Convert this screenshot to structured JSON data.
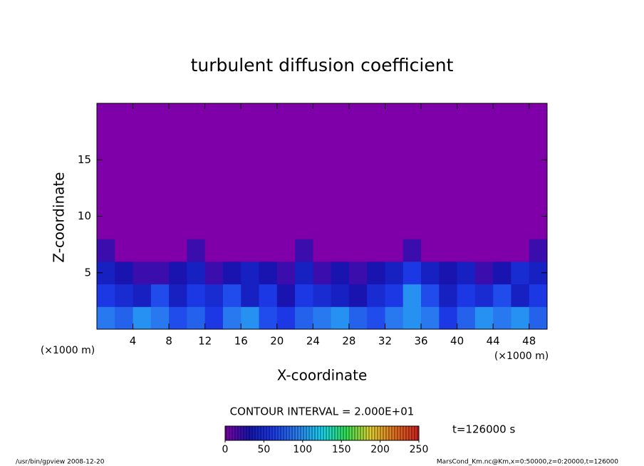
{
  "chart_data": {
    "type": "contour",
    "title": "turbulent diffusion coefficient",
    "xlabel": "X-coordinate",
    "ylabel": "Z-coordinate",
    "xunit": "(×1000 m)",
    "xlim": [
      0,
      50
    ],
    "xticks": [
      4,
      8,
      12,
      16,
      20,
      24,
      28,
      32,
      36,
      40,
      44,
      48
    ],
    "ylim": [
      0,
      20
    ],
    "yticks": [
      5,
      10,
      15
    ],
    "x": [
      1,
      3,
      5,
      7,
      9,
      11,
      13,
      15,
      17,
      19,
      21,
      23,
      25,
      27,
      29,
      31,
      33,
      35,
      37,
      39,
      41,
      43,
      45,
      47,
      49
    ],
    "y": [
      1,
      3,
      5,
      7,
      9,
      11,
      13,
      15,
      17,
      19
    ],
    "values": [
      [
        90,
        80,
        100,
        90,
        70,
        80,
        60,
        90,
        100,
        70,
        60,
        80,
        90,
        100,
        80,
        70,
        90,
        100,
        90,
        60,
        80,
        100,
        90,
        100,
        80
      ],
      [
        60,
        50,
        40,
        70,
        40,
        60,
        50,
        70,
        40,
        60,
        30,
        60,
        50,
        40,
        30,
        50,
        60,
        100,
        70,
        40,
        60,
        50,
        70,
        40,
        60
      ],
      [
        40,
        30,
        20,
        20,
        30,
        40,
        20,
        30,
        40,
        30,
        20,
        40,
        20,
        30,
        20,
        30,
        40,
        60,
        40,
        30,
        40,
        20,
        30,
        50,
        40
      ],
      [
        20,
        0,
        0,
        0,
        0,
        20,
        0,
        0,
        0,
        0,
        0,
        20,
        0,
        0,
        0,
        0,
        0,
        20,
        0,
        0,
        0,
        0,
        0,
        0,
        20
      ],
      [
        0,
        0,
        0,
        0,
        0,
        0,
        0,
        0,
        0,
        0,
        0,
        0,
        0,
        0,
        0,
        0,
        0,
        0,
        0,
        0,
        0,
        0,
        0,
        0,
        0
      ],
      [
        0,
        0,
        0,
        0,
        0,
        0,
        0,
        0,
        0,
        0,
        0,
        0,
        0,
        0,
        0,
        0,
        0,
        0,
        0,
        0,
        0,
        0,
        0,
        0,
        0
      ],
      [
        0,
        0,
        0,
        0,
        0,
        0,
        0,
        0,
        0,
        0,
        0,
        0,
        0,
        0,
        0,
        0,
        0,
        0,
        0,
        0,
        0,
        0,
        0,
        0,
        0
      ],
      [
        0,
        0,
        0,
        0,
        0,
        0,
        0,
        0,
        0,
        0,
        0,
        0,
        0,
        0,
        0,
        0,
        0,
        0,
        0,
        0,
        0,
        0,
        0,
        0,
        0
      ],
      [
        0,
        0,
        0,
        0,
        0,
        0,
        0,
        0,
        0,
        0,
        0,
        0,
        0,
        0,
        0,
        0,
        0,
        0,
        0,
        0,
        0,
        0,
        0,
        0,
        0
      ],
      [
        0,
        0,
        0,
        0,
        0,
        0,
        0,
        0,
        0,
        0,
        0,
        0,
        0,
        0,
        0,
        0,
        0,
        0,
        0,
        0,
        0,
        0,
        0,
        0,
        0
      ]
    ],
    "colors": [
      "#7f00a8",
      "#1515b0",
      "#1c3be8",
      "#2a80f0",
      "#18d4f0",
      "#30e050",
      "#e0d030",
      "#e07020",
      "#d02020"
    ],
    "clim": [
      0,
      250
    ],
    "cticks": [
      0,
      50,
      100,
      150,
      200,
      250
    ],
    "contour_interval": "CONTOUR INTERVAL = 2.000E+01",
    "time": "t=126000 s",
    "footer_left": "/usr/bin/gpview   2008-12-20",
    "footer_right": "MarsCond_Km.nc@Km,x=0:50000,z=0:20000,t=126000"
  }
}
